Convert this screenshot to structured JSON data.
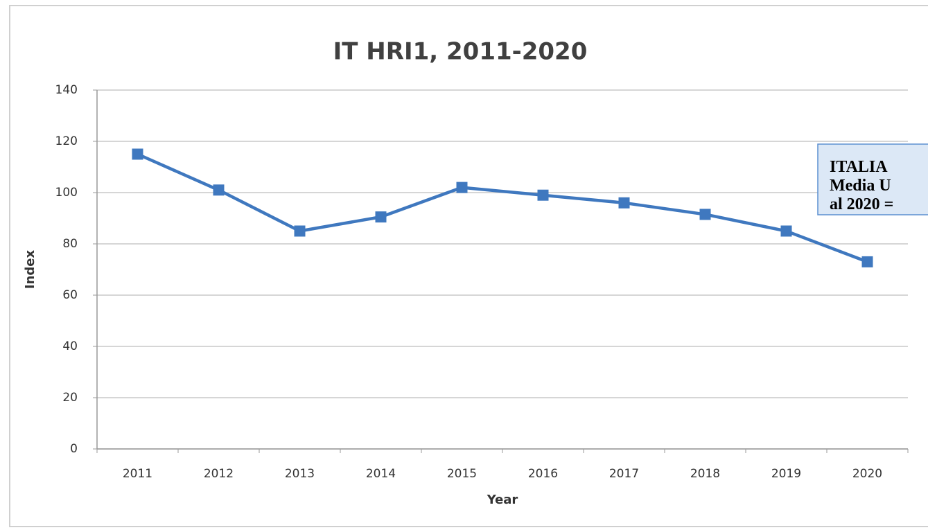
{
  "chart_data": {
    "type": "line",
    "title": "IT HRI1, 2011-2020",
    "x_label": "Year",
    "y_label": "Index",
    "categories": [
      "2011",
      "2012",
      "2013",
      "2014",
      "2015",
      "2016",
      "2017",
      "2018",
      "2019",
      "2020"
    ],
    "series": [
      {
        "name": "IT HRI1",
        "color": "#3f78bf",
        "values": [
          115,
          101,
          85,
          90.5,
          102,
          99,
          96,
          91.5,
          85,
          73
        ]
      }
    ],
    "ylim": [
      0,
      140
    ],
    "yticks": [
      0,
      20,
      40,
      60,
      80,
      100,
      120,
      140
    ],
    "grid": true,
    "annotation": [
      "ITALIA",
      "Media U",
      "al 2020 ="
    ]
  }
}
